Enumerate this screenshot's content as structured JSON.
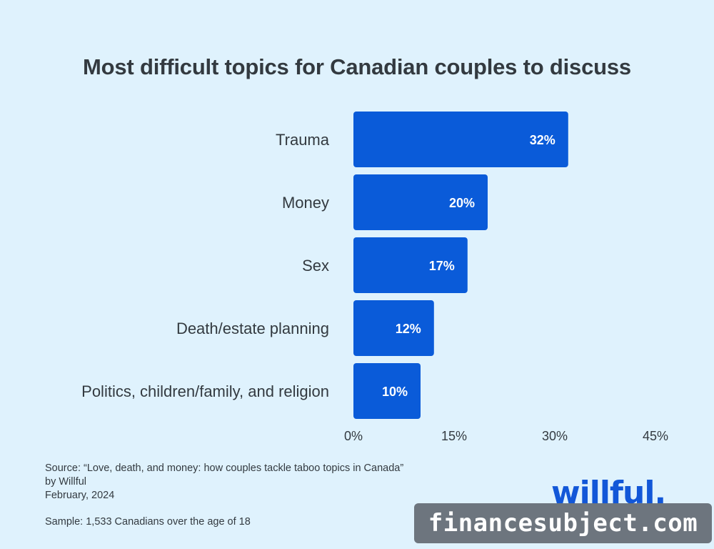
{
  "chart_data": {
    "type": "bar",
    "orientation": "horizontal",
    "title": "Most difficult topics for Canadian couples to discuss",
    "categories": [
      "Trauma",
      "Money",
      "Sex",
      "Death/estate planning",
      "Politics, children/family, and religion"
    ],
    "values": [
      32,
      20,
      17,
      12,
      10
    ],
    "value_labels": [
      "32%",
      "20%",
      "17%",
      "12%",
      "10%"
    ],
    "xlim": [
      0,
      45
    ],
    "xticks": [
      0,
      15,
      30,
      45
    ],
    "xtick_labels": [
      "0%",
      "15%",
      "30%",
      "45%"
    ],
    "grid": false,
    "bar_color": "#0a5bd9"
  },
  "source": {
    "line1": "Source: “Love, death, and money: how couples tackle taboo topics in Canada”",
    "line2": "by Willful",
    "line3": "February, 2024"
  },
  "sample": "Sample: 1,533 Canadians over the age of 18",
  "logo": "willful.",
  "watermark": "financesubject.com",
  "colors": {
    "background": "#dff2fd",
    "bar": "#0a5bd9",
    "logo": "#1257d8"
  }
}
